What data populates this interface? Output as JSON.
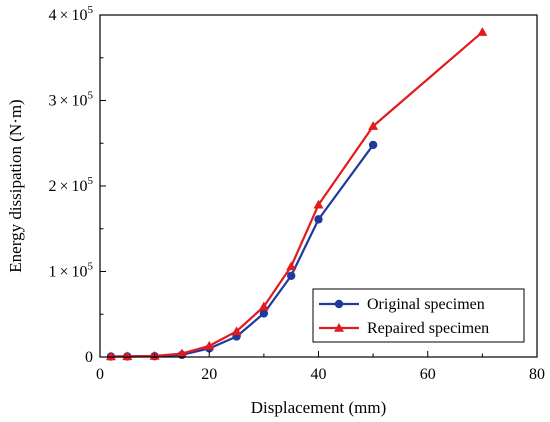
{
  "chart_data": {
    "type": "line",
    "xlabel": "Displacement (mm)",
    "ylabel": "Energy dissipation (N·m)",
    "xlim": [
      0,
      80
    ],
    "ylim": [
      0,
      400000
    ],
    "x_ticks": [
      0,
      20,
      40,
      60,
      80
    ],
    "x_tick_labels": [
      "0",
      "20",
      "40",
      "60",
      "80"
    ],
    "y_ticks": [
      {
        "value": 0,
        "mantissa": "0",
        "times": "",
        "base": "",
        "exponent": ""
      },
      {
        "value": 100000,
        "mantissa": "1",
        "times": "×",
        "base": "10",
        "exponent": "5"
      },
      {
        "value": 200000,
        "mantissa": "2",
        "times": "×",
        "base": "10",
        "exponent": "5"
      },
      {
        "value": 300000,
        "mantissa": "3",
        "times": "×",
        "base": "10",
        "exponent": "5"
      },
      {
        "value": 400000,
        "mantissa": "4",
        "times": "×",
        "base": "10",
        "exponent": "5"
      }
    ],
    "grid": false,
    "legend_position": "bottom-right",
    "series": [
      {
        "name": "Original specimen",
        "color": "#1f3a9e",
        "marker": "circle",
        "x": [
          2,
          5,
          10,
          15,
          20,
          25,
          30,
          35,
          40,
          50
        ],
        "y": [
          500,
          600,
          900,
          2500,
          10000,
          24000,
          51000,
          95000,
          161000,
          248000
        ]
      },
      {
        "name": "Repaired specimen",
        "color": "#e41a1c",
        "marker": "triangle",
        "x": [
          2,
          5,
          10,
          15,
          20,
          25,
          30,
          35,
          40,
          50,
          70
        ],
        "y": [
          600,
          800,
          1200,
          4000,
          13000,
          30000,
          59000,
          106000,
          178000,
          270000,
          380000
        ]
      }
    ]
  }
}
